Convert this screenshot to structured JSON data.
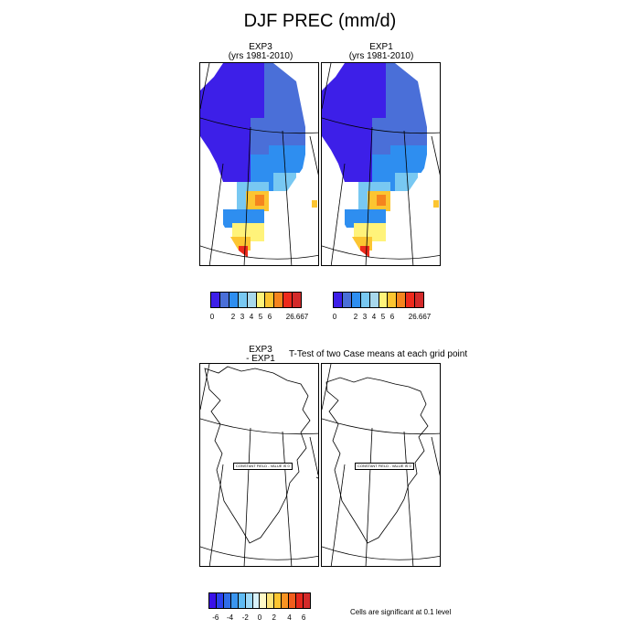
{
  "figure": {
    "title": "DJF PREC (mm/d)"
  },
  "top_panels": [
    {
      "name": "EXP3",
      "years": "(yrs 1981-2010)"
    },
    {
      "name": "EXP1",
      "years": "(yrs 1981-2010)"
    }
  ],
  "bottom": {
    "left_label_line1": "EXP3",
    "left_label_line2": "- EXP1",
    "ttest_title": "T-Test of two Case means at each grid point",
    "constant_field_label": "CONSTANT FIELD - VALUE IS 0",
    "significance_note": "Cells are significant at 0.1 level"
  },
  "colorbar_prec": {
    "colors": [
      "#3d1fe8",
      "#4a6fd8",
      "#2e8ef0",
      "#78c8f2",
      "#a8d8ec",
      "#fff37a",
      "#fcc531",
      "#f5841e",
      "#ee2a1c",
      "#d42a2a"
    ],
    "tick_labels": [
      "0",
      "2",
      "3",
      "4",
      "5",
      "6",
      "26.667"
    ]
  },
  "colorbar_diff": {
    "colors": [
      "#3a10e8",
      "#2a40ee",
      "#2f6de8",
      "#3a95f0",
      "#5fbaf3",
      "#9cd8f7",
      "#d8f2fb",
      "#fff9c6",
      "#fde47a",
      "#fcc531",
      "#f99322",
      "#f25d1d",
      "#e6271c",
      "#d42a2a"
    ],
    "tick_labels": [
      "-6",
      "-4",
      "-2",
      "0",
      "2",
      "4",
      "6"
    ]
  },
  "map_colors": {
    "ocean": "#ffffff",
    "deep_blue": "#3d1fe8",
    "mid_blue": "#4a6fd8",
    "light_blue": "#2e8ef0",
    "pale_blue": "#78c8f2",
    "very_pale": "#a8d8ec",
    "yellow": "#fff37a",
    "orange_yellow": "#fcc531",
    "orange": "#f5841e",
    "red": "#ee2a1c"
  }
}
